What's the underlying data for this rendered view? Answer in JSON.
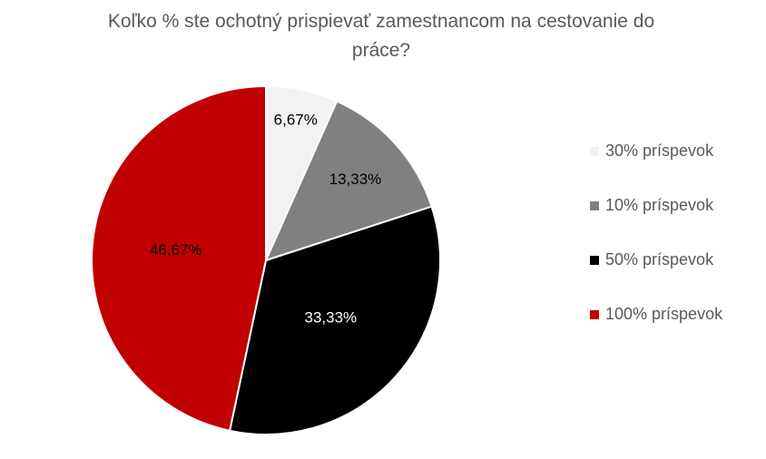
{
  "chart_data": {
    "type": "pie",
    "title": "Koľko % ste ochotný prispievať zamestnancom na cestovanie do práce?",
    "categories": [
      "30% príspevok",
      "10% príspevok",
      "50% príspevok",
      "100% príspevok"
    ],
    "values": [
      6.67,
      13.33,
      33.33,
      46.67
    ],
    "value_labels": [
      "6,67%",
      "13,33%",
      "33,33%",
      "46,67%"
    ],
    "colors": [
      "#f2f2f2",
      "#808080",
      "#000000",
      "#c00000"
    ],
    "legend": "right"
  }
}
